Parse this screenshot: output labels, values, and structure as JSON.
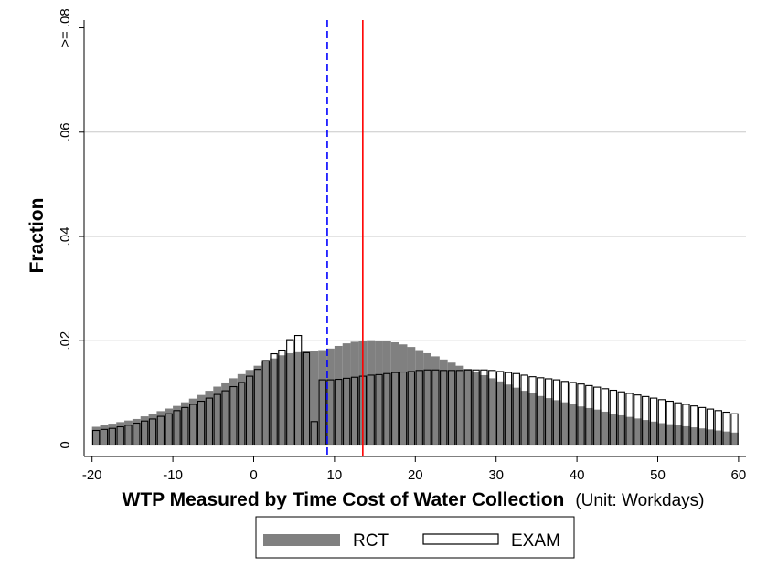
{
  "chart_data": {
    "type": "bar",
    "xlabel": "WTP Measured by Time Cost of Water Collection",
    "xlabel_unit": "(Unit: Workdays)",
    "ylabel": "Fraction",
    "xlim": [
      -20,
      60
    ],
    "ylim": [
      0,
      0.08
    ],
    "x_ticks": [
      "-20",
      "-10",
      "0",
      "10",
      "20",
      "30",
      "40",
      "50",
      "60"
    ],
    "y_ticks": [
      "0",
      ".02",
      ".04",
      ".06",
      ">= .08"
    ],
    "grid": true,
    "legend_placement": "bottom",
    "colors": {
      "rct": "#808080",
      "exam_edge": "#000000",
      "rct_mean": "#0000ff",
      "exam_mean": "#ff0000"
    },
    "vertical_lines": [
      {
        "series": "RCT",
        "x": 9.1,
        "style": "dashed",
        "color": "#0000ff"
      },
      {
        "series": "EXAM",
        "x": 13.5,
        "style": "solid",
        "color": "#ff0000"
      }
    ],
    "series": [
      {
        "name": "RCT",
        "style": "filled",
        "bin_start": -20,
        "bin_width": 1,
        "values": [
          0.0035,
          0.0038,
          0.0041,
          0.0044,
          0.0047,
          0.005,
          0.0055,
          0.006,
          0.0065,
          0.007,
          0.0075,
          0.0082,
          0.0089,
          0.0096,
          0.0104,
          0.0112,
          0.012,
          0.0128,
          0.0136,
          0.0144,
          0.0152,
          0.0159,
          0.0166,
          0.0172,
          0.0176,
          0.0178,
          0.018,
          0.0181,
          0.0182,
          0.0185,
          0.019,
          0.0195,
          0.0198,
          0.02,
          0.0201,
          0.02,
          0.0199,
          0.0197,
          0.0193,
          0.0188,
          0.0182,
          0.0176,
          0.017,
          0.0164,
          0.0158,
          0.0152,
          0.0146,
          0.014,
          0.0134,
          0.0128,
          0.0122,
          0.0116,
          0.011,
          0.0104,
          0.0099,
          0.0094,
          0.009,
          0.0086,
          0.0082,
          0.0078,
          0.0074,
          0.0071,
          0.0068,
          0.0064,
          0.006,
          0.0057,
          0.0054,
          0.0051,
          0.0048,
          0.0045,
          0.0042,
          0.004,
          0.0038,
          0.0036,
          0.0034,
          0.0032,
          0.003,
          0.0028,
          0.0026,
          0.0024
        ]
      },
      {
        "name": "EXAM",
        "style": "outline",
        "bin_start": -20,
        "bin_width": 1,
        "values": [
          0.0028,
          0.003,
          0.0032,
          0.0035,
          0.0038,
          0.0042,
          0.0046,
          0.005,
          0.0055,
          0.006,
          0.0066,
          0.0072,
          0.0078,
          0.0084,
          0.009,
          0.0097,
          0.0104,
          0.0112,
          0.012,
          0.0132,
          0.0145,
          0.0162,
          0.0175,
          0.0182,
          0.0202,
          0.021,
          0.0177,
          0.0045,
          0.0125,
          0.0125,
          0.0126,
          0.0128,
          0.013,
          0.0132,
          0.0134,
          0.0135,
          0.0137,
          0.0139,
          0.014,
          0.0141,
          0.0143,
          0.0144,
          0.0144,
          0.0143,
          0.0143,
          0.0143,
          0.0144,
          0.0144,
          0.0144,
          0.0143,
          0.0141,
          0.0139,
          0.0137,
          0.0134,
          0.0131,
          0.0129,
          0.0127,
          0.0125,
          0.0122,
          0.012,
          0.0117,
          0.0114,
          0.0111,
          0.0108,
          0.0105,
          0.0102,
          0.0099,
          0.0096,
          0.0093,
          0.009,
          0.0087,
          0.0084,
          0.0081,
          0.0078,
          0.0075,
          0.0072,
          0.0069,
          0.0066,
          0.0063,
          0.006
        ]
      }
    ],
    "legend": [
      "RCT",
      "EXAM"
    ]
  }
}
